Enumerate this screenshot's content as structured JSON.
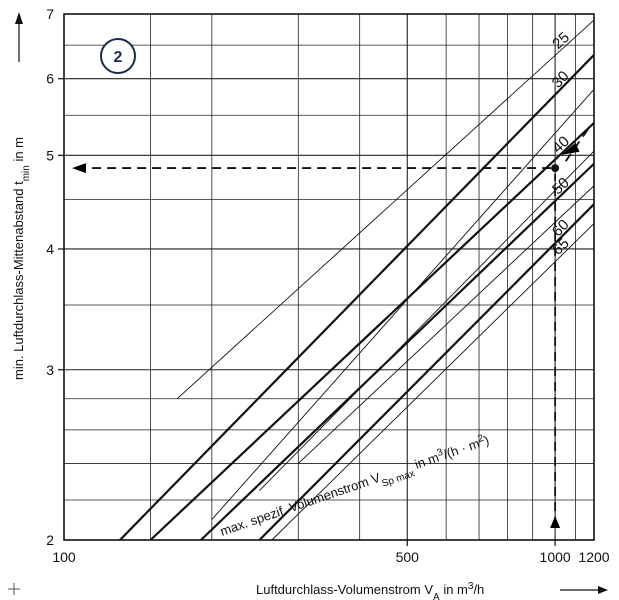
{
  "chart_data": {
    "type": "line",
    "badge": "2",
    "xlabel_main": "Luftdurchlass-Volumenstrom V",
    "xlabel_sub": "A",
    "xlabel_unit": " in m",
    "xlabel_sup": "3",
    "xlabel_tail": "/h",
    "ylabel_main": "min. Luftdurchlass-Mittenabstand t",
    "ylabel_sub": "min",
    "ylabel_unit": " in m",
    "annotation_main": "max. spezif. Volumenstrom V",
    "annotation_sub": "Sp max",
    "annotation_unit": " in m",
    "annotation_sup1": "3",
    "annotation_mid": "/(h · m",
    "annotation_sup2": "2",
    "annotation_end": ")",
    "xlim": [
      100,
      1200
    ],
    "ylim": [
      2,
      7
    ],
    "x_ticks": [
      "100",
      "500",
      "1000",
      "1200"
    ],
    "y_ticks": [
      "2",
      "3",
      "4",
      "5",
      "6",
      "7"
    ],
    "series": [
      {
        "name": "25",
        "bold": false,
        "points": [
          [
            170,
            2.8
          ],
          [
            1200,
            6.9
          ]
        ]
      },
      {
        "name": "30",
        "bold": true,
        "points": [
          [
            130,
            2.0
          ],
          [
            1200,
            6.35
          ]
        ]
      },
      {
        "name": "40",
        "bold": true,
        "points": [
          [
            150,
            2.0
          ],
          [
            1200,
            5.4
          ]
        ]
      },
      {
        "name": "50",
        "bold": true,
        "points": [
          [
            190,
            2.0
          ],
          [
            1200,
            4.9
          ]
        ]
      },
      {
        "name": "60",
        "bold": true,
        "points": [
          [
            250,
            2.0
          ],
          [
            1200,
            4.45
          ]
        ]
      },
      {
        "name": "65",
        "bold": false,
        "points": [
          [
            265,
            2.0
          ],
          [
            1200,
            4.25
          ]
        ]
      },
      {
        "name": "",
        "bold": false,
        "points": [
          [
            200,
            2.1
          ],
          [
            1200,
            5.85
          ]
        ]
      },
      {
        "name": "",
        "bold": false,
        "points": [
          [
            250,
            2.25
          ],
          [
            1200,
            5.05
          ]
        ]
      },
      {
        "name": "",
        "bold": false,
        "points": [
          [
            300,
            2.4
          ],
          [
            1200,
            4.65
          ]
        ]
      }
    ],
    "marker": {
      "x": 1000,
      "y": 4.85
    }
  }
}
